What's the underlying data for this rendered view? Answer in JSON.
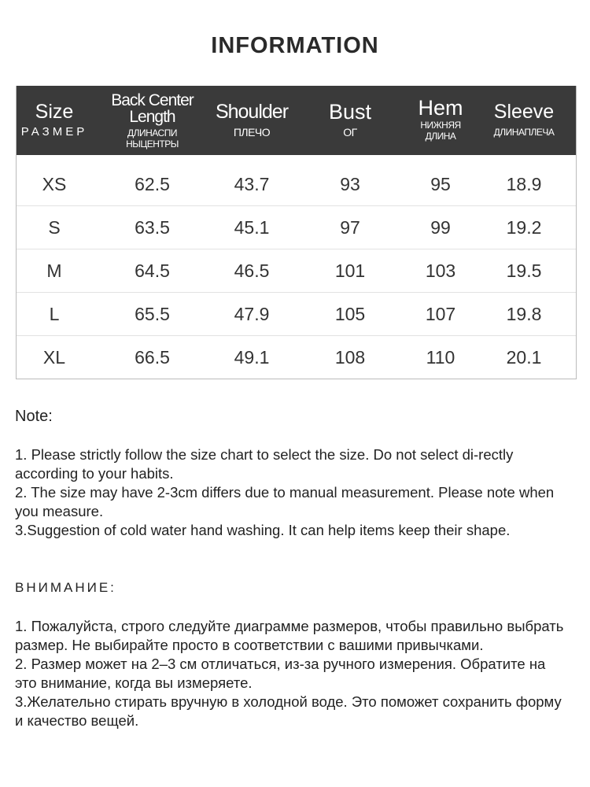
{
  "title": "INFORMATION",
  "table": {
    "headers": [
      {
        "en": "Size",
        "ru": "РАЗМЕР"
      },
      {
        "en": "Back Center Length",
        "ru": "ДЛИНАСПИ НЫЦЕНТРЫ"
      },
      {
        "en": "Shoulder",
        "ru": "ПЛЕЧО"
      },
      {
        "en": "Bust",
        "ru": "ОГ"
      },
      {
        "en": "Hem",
        "ru": "НИЖНЯЯ ДЛИНА"
      },
      {
        "en": "Sleeve",
        "ru": "ДЛИНАПЛЕЧА"
      }
    ],
    "rows": [
      [
        "XS",
        "62.5",
        "43.7",
        "93",
        "95",
        "18.9"
      ],
      [
        "S",
        "63.5",
        "45.1",
        "97",
        "99",
        "19.2"
      ],
      [
        "M",
        "64.5",
        "46.5",
        "101",
        "103",
        "19.5"
      ],
      [
        "L",
        "65.5",
        "47.9",
        "105",
        "107",
        "19.8"
      ],
      [
        "XL",
        "66.5",
        "49.1",
        "108",
        "110",
        "20.1"
      ]
    ]
  },
  "note": {
    "heading": "Note:",
    "lines": [
      "1. Please strictly follow the size chart  to select the size. Do not select di-rectly according to your habits.",
      "2. The size may have 2-3cm differs due to manual measurement. Please note when you measure.",
      "3.Suggestion of cold water hand washing. It can help items keep their shape."
    ]
  },
  "note_ru": {
    "heading": "ВНИМАНИЕ:",
    "lines": [
      "1. Пожалуйста, строго следуйте диаграмме размеров, чтобы правильно выбрать размер. Не выбирайте просто в соответствии с вашими привычками.",
      "2. Размер может на 2–3 см отличаться, из-за ручного измерения. Обратите на это внимание, когда вы измеряете.",
      "3.Желательно стирать вручную в холодной воде. Это поможет сохранить форму и качество вещей."
    ]
  }
}
